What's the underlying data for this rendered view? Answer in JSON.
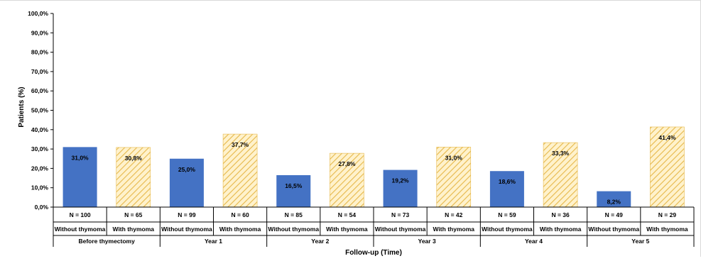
{
  "chart_data": {
    "type": "bar",
    "ylabel": "Patients (%)",
    "xlabel": "Follow-up (Time)",
    "ylim": [
      0,
      100
    ],
    "yticks": [
      "0,0%",
      "10,0%",
      "20,0%",
      "30,0%",
      "40,0%",
      "50,0%",
      "60,0%",
      "70,0%",
      "80,0%",
      "90,0%",
      "100,0%"
    ],
    "groups": [
      {
        "label": "Before thymectomy",
        "bars": [
          {
            "category": "Without thymoma",
            "n": "N = 100",
            "value": 31.0,
            "label": "31,0%"
          },
          {
            "category": "With thymoma",
            "n": "N = 65",
            "value": 30.8,
            "label": "30,8%"
          }
        ]
      },
      {
        "label": "Year 1",
        "bars": [
          {
            "category": "Without thymoma",
            "n": "N = 99",
            "value": 25.0,
            "label": "25,0%"
          },
          {
            "category": "With thymoma",
            "n": "N = 60",
            "value": 37.7,
            "label": "37,7%"
          }
        ]
      },
      {
        "label": "Year 2",
        "bars": [
          {
            "category": "Without thymoma",
            "n": "N = 85",
            "value": 16.5,
            "label": "16,5%"
          },
          {
            "category": "With thymoma",
            "n": "N = 54",
            "value": 27.8,
            "label": "27,8%"
          }
        ]
      },
      {
        "label": "Year 3",
        "bars": [
          {
            "category": "Without thymoma",
            "n": "N = 73",
            "value": 19.2,
            "label": "19,2%"
          },
          {
            "category": "With thymoma",
            "n": "N = 42",
            "value": 31.0,
            "label": "31,0%"
          }
        ]
      },
      {
        "label": "Year 4",
        "bars": [
          {
            "category": "Without thymoma",
            "n": "N = 59",
            "value": 18.6,
            "label": "18,6%"
          },
          {
            "category": "With thymoma",
            "n": "N = 36",
            "value": 33.3,
            "label": "33,3%"
          }
        ]
      },
      {
        "label": "Year 5",
        "bars": [
          {
            "category": "Without thymoma",
            "n": "N = 49",
            "value": 8.2,
            "label": "8,2%"
          },
          {
            "category": "With thymoma",
            "n": "N = 29",
            "value": 41.4,
            "label": "41,4%"
          }
        ]
      }
    ],
    "colors": {
      "without": "#4472c4",
      "with_fill": "#ffe699",
      "with_hatch": "#e6b84a"
    },
    "grid": false,
    "legend": "none"
  }
}
